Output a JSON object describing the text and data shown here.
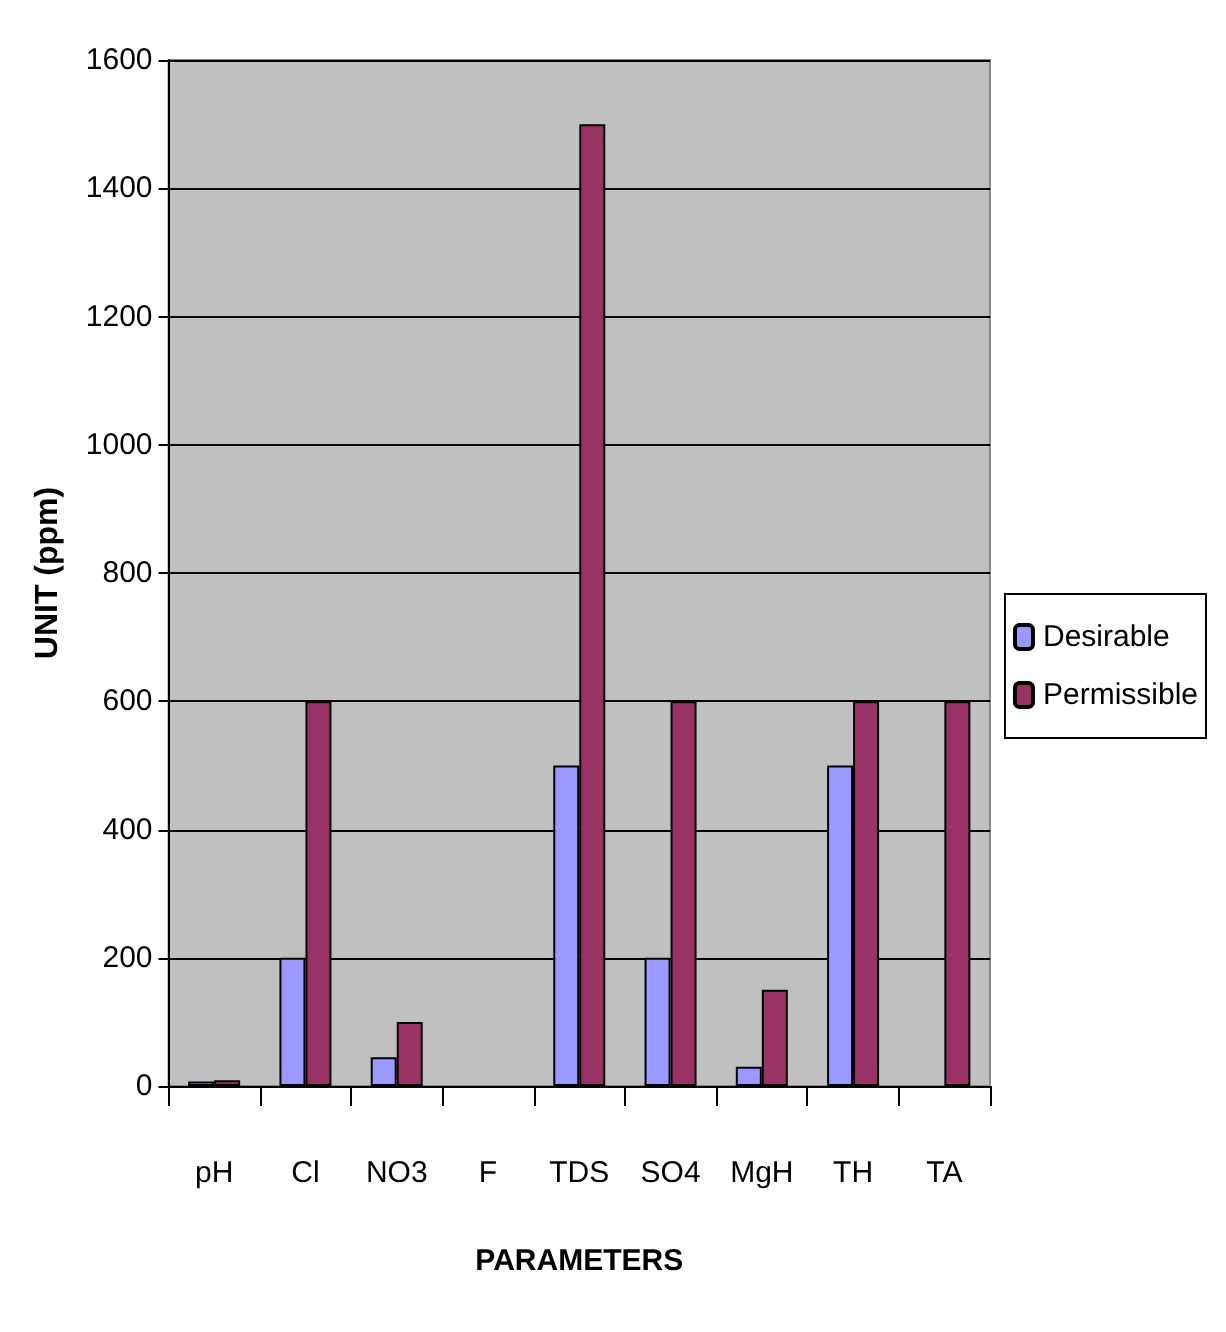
{
  "chart_data": {
    "type": "bar",
    "xlabel": "PARAMETERS",
    "ylabel": "UNIT (ppm)",
    "categories": [
      "pH",
      "Cl",
      "NO3",
      "F",
      "TDS",
      "SO4",
      "MgH",
      "TH",
      "TA"
    ],
    "series": [
      {
        "name": "Desirable",
        "color": "#9999ff",
        "values": [
          7,
          200,
          45,
          null,
          500,
          200,
          30,
          500,
          null
        ]
      },
      {
        "name": "Permissible",
        "color": "#993366",
        "values": [
          9,
          600,
          100,
          null,
          1500,
          600,
          150,
          600,
          600
        ]
      }
    ],
    "ylim": [
      0,
      1600
    ],
    "yticks": [
      0,
      200,
      400,
      600,
      800,
      1000,
      1200,
      1400,
      1600
    ],
    "grid": "y",
    "legend": "right"
  }
}
